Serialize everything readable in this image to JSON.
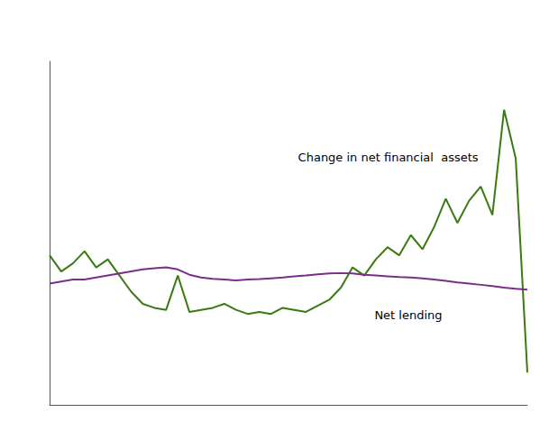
{
  "chart_data": {
    "type": "line",
    "categories": [
      null,
      null,
      null,
      null,
      null,
      null,
      null,
      null,
      null,
      null,
      null,
      null,
      null,
      null,
      null,
      null,
      null,
      null,
      null,
      null,
      null,
      null,
      null,
      null,
      null,
      null,
      null,
      null,
      null,
      null,
      null,
      null,
      null,
      null,
      null,
      null,
      null,
      null,
      null,
      null,
      null,
      null
    ],
    "series": [
      {
        "color": "#3a7a10",
        "values": [
          3.2,
          2.8,
          3.0,
          3.3,
          2.9,
          3.1,
          2.7,
          2.3,
          2.0,
          1.9,
          1.85,
          2.7,
          1.8,
          1.85,
          1.9,
          2.0,
          1.85,
          1.75,
          1.8,
          1.75,
          1.9,
          1.85,
          1.8,
          1.95,
          2.1,
          2.4,
          2.9,
          2.7,
          3.1,
          3.4,
          3.2,
          3.7,
          3.35,
          3.9,
          4.6,
          4.0,
          4.55,
          4.9,
          4.2,
          6.8,
          5.6,
          0.3
        ]
      },
      {
        "color": "#7b2d8b",
        "values": [
          2.5,
          2.55,
          2.6,
          2.6,
          2.65,
          2.7,
          2.75,
          2.8,
          2.85,
          2.88,
          2.9,
          2.85,
          2.72,
          2.65,
          2.62,
          2.6,
          2.58,
          2.6,
          2.61,
          2.63,
          2.65,
          2.68,
          2.7,
          2.73,
          2.75,
          2.76,
          2.75,
          2.72,
          2.7,
          2.68,
          2.66,
          2.65,
          2.63,
          2.6,
          2.57,
          2.53,
          2.5,
          2.47,
          2.44,
          2.4,
          2.37,
          2.35
        ]
      }
    ],
    "annotations": [
      "Change in net financial  assets",
      "Net lending"
    ],
    "ylim": [
      -0.5,
      8.0
    ],
    "grid": false,
    "tick_labels": false
  }
}
